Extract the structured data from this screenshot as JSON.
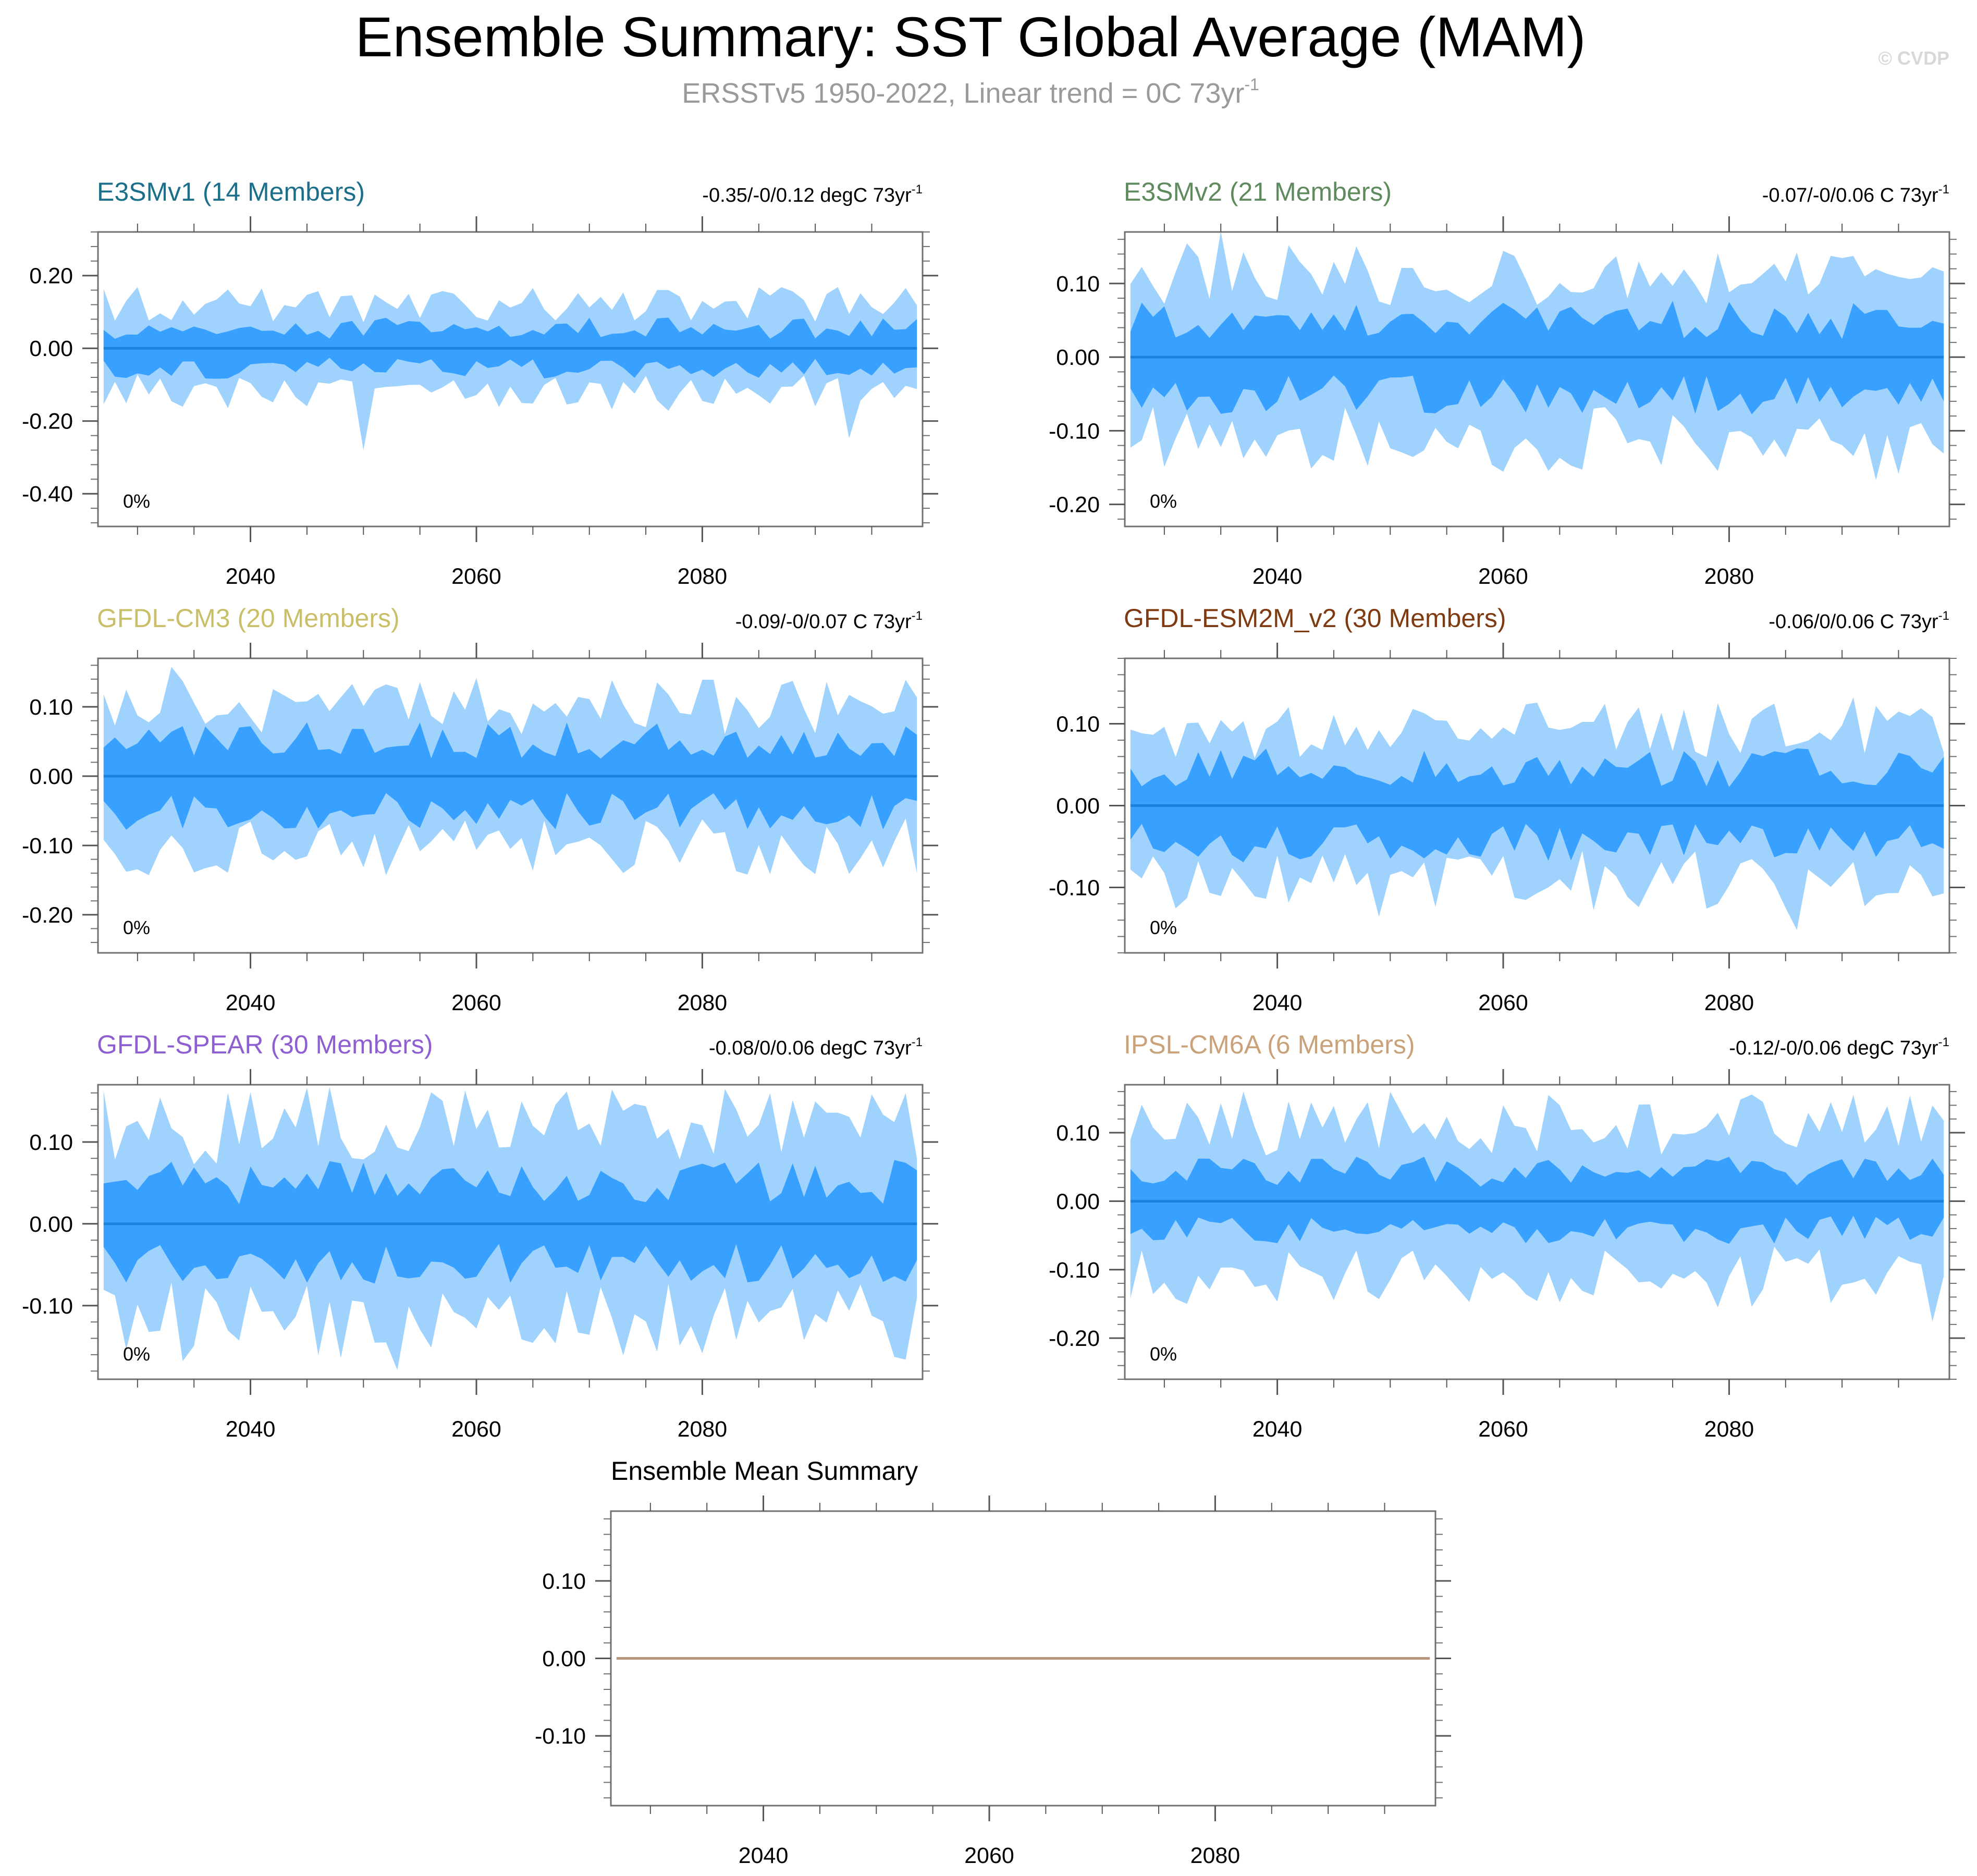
{
  "header": {
    "title": "Ensemble Summary: SST Global Average (MAM)",
    "subtitle_main": "ERSSTv5 1950-2022, Linear trend = 0C 73yr",
    "subtitle_sup": "-1",
    "copyright": "© CVDP"
  },
  "colors": {
    "outer_band": "#9fd2fd",
    "inner_band": "#38a0fe",
    "mean_line": "#1a82dc",
    "summary_line": "#b8957d"
  },
  "chart_data": [
    {
      "id": "e3smv1",
      "type": "area",
      "title": "E3SMv1 (14 Members)",
      "title_color": "#1b6f8a",
      "trend_text": "-0.35/-0/0.12 degC 73yr",
      "trend_sup": "-1",
      "pct_label": "0%",
      "ylim": [
        -0.49,
        0.32
      ],
      "yticks": [
        0.2,
        0.0,
        -0.2,
        -0.4
      ],
      "ytick_labels": [
        "0.20",
        "0.00",
        "-0.20",
        "-0.40"
      ],
      "xlim": [
        2026.5,
        2099.5
      ],
      "xticks": [
        2040,
        2060,
        2080
      ],
      "xtick_labels": [
        "2040",
        "2060",
        "2080"
      ],
      "outer_amp": 0.13,
      "inner_amp": 0.065,
      "seed": 11,
      "spike_extra": 0.18
    },
    {
      "id": "e3smv2",
      "type": "area",
      "title": "E3SMv2 (21 Members)",
      "title_color": "#5e8a5e",
      "trend_text": "-0.07/-0/0.06 C 73yr",
      "trend_sup": "-1",
      "pct_label": "0%",
      "ylim": [
        -0.23,
        0.17
      ],
      "yticks": [
        0.1,
        0.0,
        -0.1,
        -0.2
      ],
      "ytick_labels": [
        "0.10",
        "0.00",
        "-0.10",
        "-0.20"
      ],
      "xlim": [
        2026.5,
        2099.5
      ],
      "xticks": [
        2040,
        2060,
        2080
      ],
      "xtick_labels": [
        "2040",
        "2060",
        "2080"
      ],
      "outer_amp": 0.12,
      "inner_amp": 0.06,
      "seed": 23,
      "spike_extra": 0.04
    },
    {
      "id": "gfdl-cm3",
      "type": "area",
      "title": "GFDL-CM3 (20 Members)",
      "title_color": "#c9bf68",
      "trend_text": "-0.09/-0/0.07 C 73yr",
      "trend_sup": "-1",
      "pct_label": "0%",
      "ylim": [
        -0.255,
        0.17
      ],
      "yticks": [
        0.1,
        0.0,
        -0.1,
        -0.2
      ],
      "ytick_labels": [
        "0.10",
        "0.00",
        "-0.10",
        "-0.20"
      ],
      "xlim": [
        2026.5,
        2099.5
      ],
      "xticks": [
        2040,
        2060,
        2080
      ],
      "xtick_labels": [
        "2040",
        "2060",
        "2080"
      ],
      "outer_amp": 0.11,
      "inner_amp": 0.06,
      "seed": 37,
      "spike_extra": 0.05
    },
    {
      "id": "gfdl-esm2m-v2",
      "type": "area",
      "title": "GFDL-ESM2M_v2 (30 Members)",
      "title_color": "#7e3b12",
      "trend_text": "-0.06/0/0.06 C 73yr",
      "trend_sup": "-1",
      "pct_label": "0%",
      "ylim": [
        -0.18,
        0.18
      ],
      "yticks": [
        0.1,
        0.0,
        -0.1
      ],
      "ytick_labels": [
        "0.10",
        "0.00",
        "-0.10"
      ],
      "xlim": [
        2026.5,
        2099.5
      ],
      "xticks": [
        2040,
        2060,
        2080
      ],
      "xtick_labels": [
        "2040",
        "2060",
        "2080"
      ],
      "outer_amp": 0.1,
      "inner_amp": 0.055,
      "seed": 41,
      "spike_extra": 0.03
    },
    {
      "id": "gfdl-spear",
      "type": "area",
      "title": "GFDL-SPEAR (30 Members)",
      "title_color": "#8e5fd0",
      "trend_text": "-0.08/0/0.06 degC 73yr",
      "trend_sup": "-1",
      "pct_label": "0%",
      "ylim": [
        -0.19,
        0.17
      ],
      "yticks": [
        0.1,
        0.0,
        -0.1
      ],
      "ytick_labels": [
        "0.10",
        "0.00",
        "-0.10"
      ],
      "xlim": [
        2026.5,
        2099.5
      ],
      "xticks": [
        2040,
        2060,
        2080
      ],
      "xtick_labels": [
        "2040",
        "2060",
        "2080"
      ],
      "outer_amp": 0.13,
      "inner_amp": 0.06,
      "seed": 53,
      "spike_extra": 0.03
    },
    {
      "id": "ipsl-cm6a",
      "type": "area",
      "title": "IPSL-CM6A (6 Members)",
      "title_color": "#c9a27a",
      "trend_text": "-0.12/-0/0.06 degC 73yr",
      "trend_sup": "-1",
      "pct_label": "0%",
      "ylim": [
        -0.26,
        0.17
      ],
      "yticks": [
        0.1,
        0.0,
        -0.1,
        -0.2
      ],
      "ytick_labels": [
        "0.10",
        "0.00",
        "-0.10",
        "-0.20"
      ],
      "xlim": [
        2026.5,
        2099.5
      ],
      "xticks": [
        2040,
        2060,
        2080
      ],
      "xtick_labels": [
        "2040",
        "2060",
        "2080"
      ],
      "outer_amp": 0.12,
      "inner_amp": 0.05,
      "seed": 67,
      "spike_extra": 0.06
    },
    {
      "id": "ensemble-mean-summary",
      "type": "line",
      "title": "Ensemble Mean Summary",
      "title_color": "#000000",
      "ylim": [
        -0.19,
        0.19
      ],
      "yticks": [
        0.1,
        0.0,
        -0.1
      ],
      "ytick_labels": [
        "0.10",
        "0.00",
        "-0.10"
      ],
      "xlim": [
        2026.5,
        2099.5
      ],
      "xticks": [
        2040,
        2060,
        2080
      ],
      "xtick_labels": [
        "2040",
        "2060",
        "2080"
      ],
      "x": [
        2027,
        2099
      ],
      "y": [
        0.0,
        0.0
      ]
    }
  ]
}
